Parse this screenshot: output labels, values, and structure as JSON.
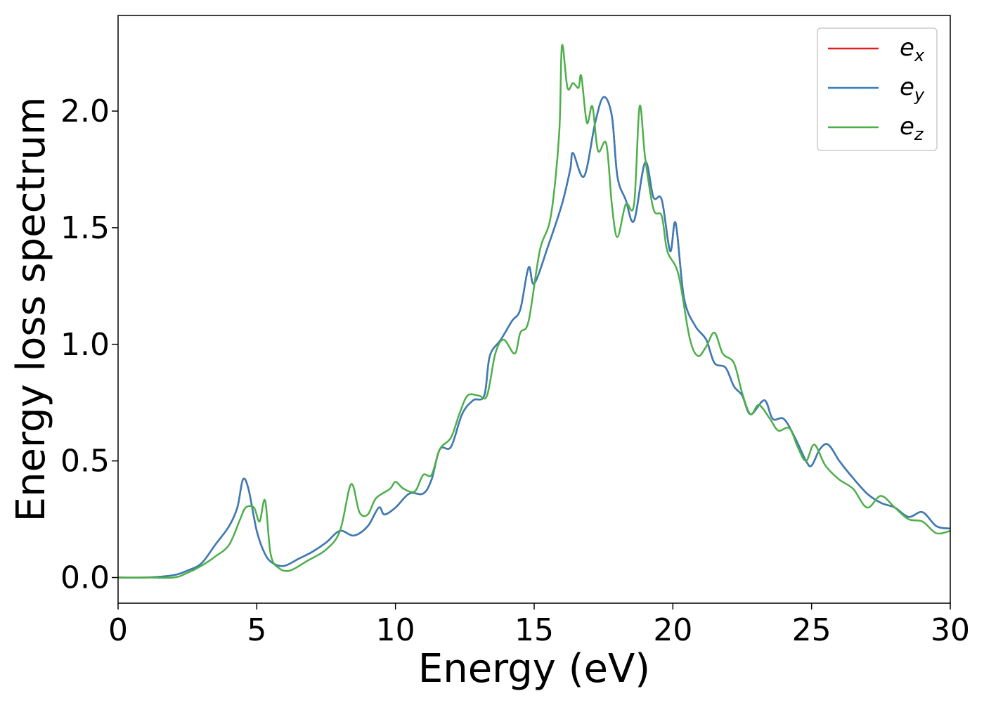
{
  "chart_data": {
    "type": "line",
    "title": "",
    "xlabel": "Energy (eV)",
    "ylabel": "Energy loss spectrum",
    "xlim": [
      0,
      30
    ],
    "ylim": [
      -0.11,
      2.41
    ],
    "xticks": [
      "0",
      "5",
      "10",
      "15",
      "20",
      "25",
      "30"
    ],
    "yticks": [
      "0.0",
      "0.5",
      "1.0",
      "1.5",
      "2.0"
    ],
    "grid": false,
    "legend_position": "top-right",
    "series": [
      {
        "name": "e_x",
        "legend_base": "e",
        "legend_sub": "x",
        "color": "#e41a1c",
        "points": [
          [
            0,
            0
          ],
          [
            1,
            0.0
          ],
          [
            2,
            0.01
          ],
          [
            2.5,
            0.03
          ],
          [
            3,
            0.06
          ],
          [
            3.5,
            0.14
          ],
          [
            4,
            0.22
          ],
          [
            4.3,
            0.3
          ],
          [
            4.5,
            0.42
          ],
          [
            4.7,
            0.38
          ],
          [
            5,
            0.2
          ],
          [
            5.3,
            0.1
          ],
          [
            5.6,
            0.06
          ],
          [
            6,
            0.05
          ],
          [
            6.5,
            0.08
          ],
          [
            7,
            0.11
          ],
          [
            7.5,
            0.15
          ],
          [
            8,
            0.2
          ],
          [
            8.5,
            0.18
          ],
          [
            9,
            0.22
          ],
          [
            9.4,
            0.3
          ],
          [
            9.6,
            0.27
          ],
          [
            10,
            0.3
          ],
          [
            10.5,
            0.36
          ],
          [
            11,
            0.36
          ],
          [
            11.3,
            0.42
          ],
          [
            11.6,
            0.55
          ],
          [
            12,
            0.56
          ],
          [
            12.4,
            0.7
          ],
          [
            12.8,
            0.76
          ],
          [
            13.2,
            0.78
          ],
          [
            13.4,
            0.95
          ],
          [
            13.8,
            1.02
          ],
          [
            14.2,
            1.1
          ],
          [
            14.5,
            1.15
          ],
          [
            14.8,
            1.33
          ],
          [
            15,
            1.26
          ],
          [
            15.5,
            1.42
          ],
          [
            16,
            1.6
          ],
          [
            16.3,
            1.75
          ],
          [
            16.4,
            1.82
          ],
          [
            16.8,
            1.72
          ],
          [
            17.2,
            1.95
          ],
          [
            17.5,
            2.06
          ],
          [
            17.8,
            1.98
          ],
          [
            18,
            1.72
          ],
          [
            18.3,
            1.62
          ],
          [
            18.6,
            1.53
          ],
          [
            19,
            1.78
          ],
          [
            19.3,
            1.63
          ],
          [
            19.6,
            1.62
          ],
          [
            19.9,
            1.4
          ],
          [
            20.1,
            1.52
          ],
          [
            20.4,
            1.2
          ],
          [
            20.8,
            1.08
          ],
          [
            21.2,
            1.02
          ],
          [
            21.5,
            0.92
          ],
          [
            21.9,
            0.9
          ],
          [
            22.2,
            0.82
          ],
          [
            22.5,
            0.78
          ],
          [
            22.8,
            0.7
          ],
          [
            23.3,
            0.76
          ],
          [
            23.6,
            0.68
          ],
          [
            24,
            0.68
          ],
          [
            24.4,
            0.6
          ],
          [
            24.8,
            0.5
          ],
          [
            25,
            0.48
          ],
          [
            25.3,
            0.55
          ],
          [
            25.6,
            0.57
          ],
          [
            26,
            0.5
          ],
          [
            26.4,
            0.44
          ],
          [
            27,
            0.36
          ],
          [
            27.5,
            0.32
          ],
          [
            28,
            0.3
          ],
          [
            28.5,
            0.26
          ],
          [
            29,
            0.28
          ],
          [
            29.5,
            0.22
          ],
          [
            30,
            0.21
          ]
        ]
      },
      {
        "name": "e_y",
        "legend_base": "e",
        "legend_sub": "y",
        "color": "#377eb8",
        "points": [
          [
            0,
            0
          ],
          [
            1,
            0.0
          ],
          [
            2,
            0.01
          ],
          [
            2.5,
            0.03
          ],
          [
            3,
            0.06
          ],
          [
            3.5,
            0.14
          ],
          [
            4,
            0.22
          ],
          [
            4.3,
            0.3
          ],
          [
            4.5,
            0.42
          ],
          [
            4.7,
            0.38
          ],
          [
            5,
            0.2
          ],
          [
            5.3,
            0.1
          ],
          [
            5.6,
            0.06
          ],
          [
            6,
            0.05
          ],
          [
            6.5,
            0.08
          ],
          [
            7,
            0.11
          ],
          [
            7.5,
            0.15
          ],
          [
            8,
            0.2
          ],
          [
            8.5,
            0.18
          ],
          [
            9,
            0.22
          ],
          [
            9.4,
            0.3
          ],
          [
            9.6,
            0.27
          ],
          [
            10,
            0.3
          ],
          [
            10.5,
            0.36
          ],
          [
            11,
            0.36
          ],
          [
            11.3,
            0.42
          ],
          [
            11.6,
            0.55
          ],
          [
            12,
            0.56
          ],
          [
            12.4,
            0.7
          ],
          [
            12.8,
            0.76
          ],
          [
            13.2,
            0.78
          ],
          [
            13.4,
            0.95
          ],
          [
            13.8,
            1.02
          ],
          [
            14.2,
            1.1
          ],
          [
            14.5,
            1.15
          ],
          [
            14.8,
            1.33
          ],
          [
            15,
            1.26
          ],
          [
            15.5,
            1.42
          ],
          [
            16,
            1.6
          ],
          [
            16.3,
            1.75
          ],
          [
            16.4,
            1.82
          ],
          [
            16.8,
            1.72
          ],
          [
            17.2,
            1.95
          ],
          [
            17.5,
            2.06
          ],
          [
            17.8,
            1.98
          ],
          [
            18,
            1.72
          ],
          [
            18.3,
            1.62
          ],
          [
            18.6,
            1.53
          ],
          [
            19,
            1.78
          ],
          [
            19.3,
            1.63
          ],
          [
            19.6,
            1.62
          ],
          [
            19.9,
            1.4
          ],
          [
            20.1,
            1.52
          ],
          [
            20.4,
            1.2
          ],
          [
            20.8,
            1.08
          ],
          [
            21.2,
            1.02
          ],
          [
            21.5,
            0.92
          ],
          [
            21.9,
            0.9
          ],
          [
            22.2,
            0.82
          ],
          [
            22.5,
            0.78
          ],
          [
            22.8,
            0.7
          ],
          [
            23.3,
            0.76
          ],
          [
            23.6,
            0.68
          ],
          [
            24,
            0.68
          ],
          [
            24.4,
            0.6
          ],
          [
            24.8,
            0.5
          ],
          [
            25,
            0.48
          ],
          [
            25.3,
            0.55
          ],
          [
            25.6,
            0.57
          ],
          [
            26,
            0.5
          ],
          [
            26.4,
            0.44
          ],
          [
            27,
            0.36
          ],
          [
            27.5,
            0.32
          ],
          [
            28,
            0.3
          ],
          [
            28.5,
            0.26
          ],
          [
            29,
            0.28
          ],
          [
            29.5,
            0.22
          ],
          [
            30,
            0.21
          ]
        ]
      },
      {
        "name": "e_z",
        "legend_base": "e",
        "legend_sub": "z",
        "color": "#4daf4a",
        "points": [
          [
            0,
            0
          ],
          [
            1,
            0.0
          ],
          [
            2,
            0.0
          ],
          [
            2.5,
            0.02
          ],
          [
            3,
            0.05
          ],
          [
            3.5,
            0.09
          ],
          [
            4,
            0.14
          ],
          [
            4.4,
            0.25
          ],
          [
            4.6,
            0.3
          ],
          [
            4.9,
            0.3
          ],
          [
            5.1,
            0.24
          ],
          [
            5.3,
            0.33
          ],
          [
            5.5,
            0.1
          ],
          [
            5.8,
            0.04
          ],
          [
            6.2,
            0.03
          ],
          [
            6.8,
            0.07
          ],
          [
            7.5,
            0.12
          ],
          [
            8,
            0.2
          ],
          [
            8.4,
            0.4
          ],
          [
            8.7,
            0.28
          ],
          [
            9,
            0.27
          ],
          [
            9.3,
            0.34
          ],
          [
            9.8,
            0.38
          ],
          [
            10,
            0.41
          ],
          [
            10.3,
            0.38
          ],
          [
            10.7,
            0.37
          ],
          [
            11,
            0.44
          ],
          [
            11.3,
            0.44
          ],
          [
            11.6,
            0.55
          ],
          [
            12,
            0.6
          ],
          [
            12.3,
            0.7
          ],
          [
            12.6,
            0.78
          ],
          [
            13,
            0.78
          ],
          [
            13.3,
            0.78
          ],
          [
            13.6,
            0.96
          ],
          [
            13.9,
            1.02
          ],
          [
            14.3,
            0.96
          ],
          [
            14.5,
            1.05
          ],
          [
            14.8,
            1.1
          ],
          [
            15.2,
            1.4
          ],
          [
            15.6,
            1.55
          ],
          [
            15.9,
            1.9
          ],
          [
            16,
            2.28
          ],
          [
            16.2,
            2.1
          ],
          [
            16.4,
            2.12
          ],
          [
            16.6,
            2.1
          ],
          [
            16.7,
            2.15
          ],
          [
            16.9,
            1.95
          ],
          [
            17.1,
            2.02
          ],
          [
            17.3,
            1.83
          ],
          [
            17.6,
            1.86
          ],
          [
            17.8,
            1.6
          ],
          [
            18,
            1.46
          ],
          [
            18.3,
            1.6
          ],
          [
            18.6,
            1.6
          ],
          [
            18.8,
            2.02
          ],
          [
            19,
            1.8
          ],
          [
            19.3,
            1.58
          ],
          [
            19.6,
            1.55
          ],
          [
            19.8,
            1.4
          ],
          [
            20.2,
            1.3
          ],
          [
            20.6,
            1.03
          ],
          [
            20.9,
            0.95
          ],
          [
            21.2,
            0.99
          ],
          [
            21.5,
            1.05
          ],
          [
            21.8,
            0.96
          ],
          [
            22.2,
            0.92
          ],
          [
            22.5,
            0.79
          ],
          [
            22.8,
            0.7
          ],
          [
            23.1,
            0.74
          ],
          [
            23.5,
            0.68
          ],
          [
            23.8,
            0.63
          ],
          [
            24.2,
            0.64
          ],
          [
            24.5,
            0.56
          ],
          [
            24.8,
            0.5
          ],
          [
            25.1,
            0.57
          ],
          [
            25.5,
            0.48
          ],
          [
            26,
            0.42
          ],
          [
            26.5,
            0.38
          ],
          [
            27,
            0.3
          ],
          [
            27.5,
            0.35
          ],
          [
            28,
            0.3
          ],
          [
            28.5,
            0.25
          ],
          [
            29,
            0.24
          ],
          [
            29.5,
            0.19
          ],
          [
            30,
            0.2
          ]
        ]
      }
    ]
  }
}
